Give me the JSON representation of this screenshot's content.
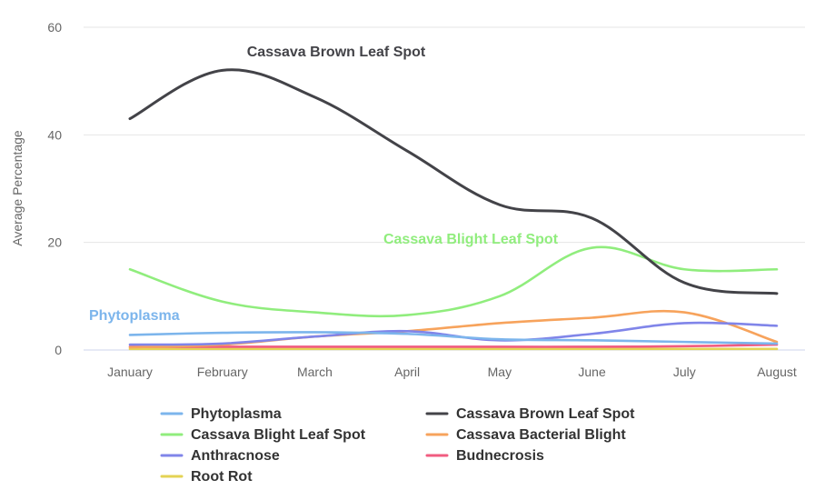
{
  "chart_data": {
    "type": "line",
    "title": "",
    "xlabel": "",
    "ylabel": "Average Percentage",
    "categories": [
      "January",
      "February",
      "March",
      "April",
      "May",
      "June",
      "July",
      "August"
    ],
    "yticks": [
      0,
      20,
      40,
      60
    ],
    "ylim": [
      0,
      60
    ],
    "grid": true,
    "legend_position": "bottom",
    "series": [
      {
        "name": "Phytoplasma",
        "color": "#7cb5ec",
        "values": [
          2.8,
          3.2,
          3.3,
          3.0,
          2.0,
          1.8,
          1.5,
          1.2
        ]
      },
      {
        "name": "Cassava Brown Leaf Spot",
        "color": "#434348",
        "values": [
          43,
          52,
          47,
          37,
          27,
          24.5,
          12.5,
          10.5
        ]
      },
      {
        "name": "Cassava Blight Leaf Spot",
        "color": "#90ed7d",
        "values": [
          15,
          9,
          7,
          6.5,
          10,
          19,
          15,
          15
        ]
      },
      {
        "name": "Cassava Bacterial Blight",
        "color": "#f7a35c",
        "values": [
          0.5,
          1.0,
          2.5,
          3.5,
          5.0,
          6.0,
          7.0,
          1.5
        ]
      },
      {
        "name": "Anthracnose",
        "color": "#8085e9",
        "values": [
          1.0,
          1.2,
          2.5,
          3.5,
          1.8,
          3.0,
          5.0,
          4.5
        ]
      },
      {
        "name": "Budnecrosis",
        "color": "#f15c80",
        "values": [
          0.6,
          0.6,
          0.6,
          0.6,
          0.6,
          0.6,
          0.7,
          1.0
        ]
      },
      {
        "name": "Root Rot",
        "color": "#e4d354",
        "values": [
          0.2,
          0.2,
          0.2,
          0.2,
          0.2,
          0.2,
          0.2,
          0.2
        ]
      }
    ],
    "annotations": [
      {
        "text": "Cassava Brown Leaf Spot",
        "series": 1,
        "color": "#434348"
      },
      {
        "text": "Cassava Blight Leaf Spot",
        "series": 2,
        "color": "#90ed7d"
      },
      {
        "text": "Phytoplasma",
        "series": 0,
        "color": "#7cb5ec"
      }
    ]
  }
}
